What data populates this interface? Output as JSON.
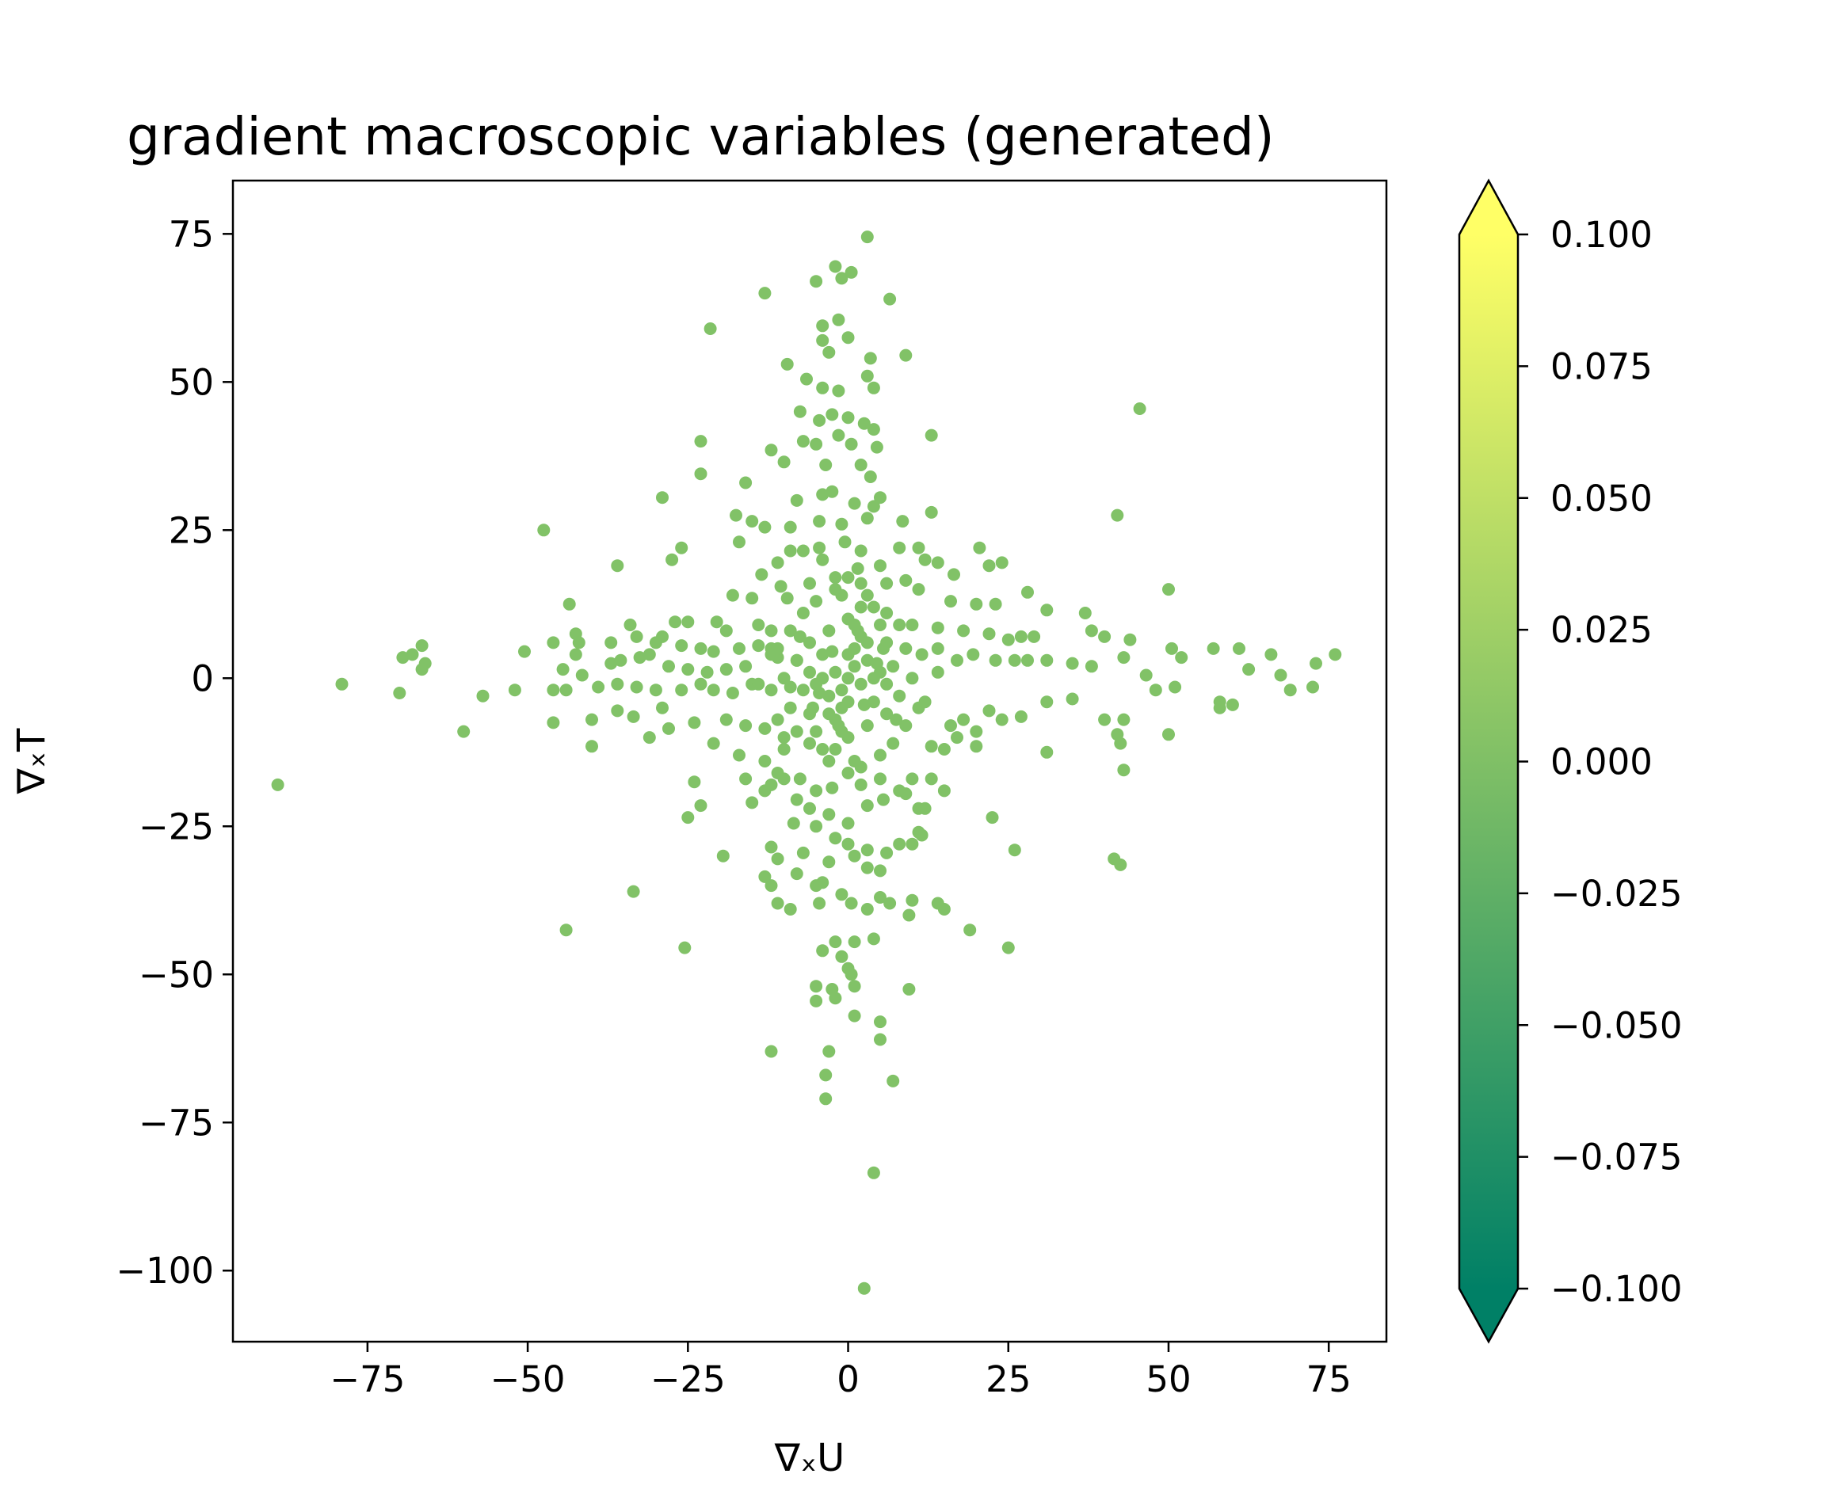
{
  "chart_data": {
    "type": "scatter",
    "title": "gradient macroscopic variables (generated)",
    "xlabel": "∇ₓU",
    "ylabel": "∇ₓT",
    "xlim": [
      -96,
      84
    ],
    "ylim": [
      -112,
      84
    ],
    "xticks": [
      -75,
      -50,
      -25,
      0,
      25,
      50,
      75
    ],
    "xtick_labels": [
      "−75",
      "−50",
      "−25",
      "0",
      "25",
      "50",
      "75"
    ],
    "yticks": [
      75,
      50,
      25,
      0,
      -25,
      -50,
      -75,
      -100
    ],
    "ytick_labels": [
      "75",
      "50",
      "25",
      "0",
      "−25",
      "−50",
      "−75",
      "−100"
    ],
    "grid": false,
    "marker_color": "#81c267",
    "colorbar": {
      "colormap": "summer",
      "range": [
        -0.1,
        0.1
      ],
      "extend": "both",
      "ticks": [
        0.1,
        0.075,
        0.05,
        0.025,
        0.0,
        -0.025,
        -0.05,
        -0.075,
        -0.1
      ],
      "tick_labels": [
        "0.100",
        "0.075",
        "0.050",
        "0.025",
        "0.000",
        "−0.025",
        "−0.050",
        "−0.075",
        "−0.100"
      ],
      "color_low": "#008066",
      "color_high": "#ffff66"
    },
    "points": [
      [
        3,
        74.5
      ],
      [
        -2,
        69.5
      ],
      [
        0.5,
        68.5
      ],
      [
        -1,
        67.5
      ],
      [
        -5,
        67
      ],
      [
        -13,
        65
      ],
      [
        6.5,
        64
      ],
      [
        -21.5,
        59
      ],
      [
        -4,
        59.5
      ],
      [
        -1.5,
        60.5
      ],
      [
        0,
        57.5
      ],
      [
        -4,
        57
      ],
      [
        -3,
        55
      ],
      [
        3.5,
        54
      ],
      [
        9,
        54.5
      ],
      [
        -9.5,
        53
      ],
      [
        -6.5,
        50.5
      ],
      [
        3,
        51
      ],
      [
        4,
        49
      ],
      [
        -4,
        49
      ],
      [
        -1.5,
        48.5
      ],
      [
        45.5,
        45.5
      ],
      [
        -7.5,
        45
      ],
      [
        -2.5,
        44.5
      ],
      [
        -4.5,
        43.5
      ],
      [
        0,
        44
      ],
      [
        2.5,
        43
      ],
      [
        4,
        42
      ],
      [
        -12,
        38.5
      ],
      [
        -23,
        40
      ],
      [
        -5,
        39.5
      ],
      [
        4.5,
        39
      ],
      [
        13,
        41
      ],
      [
        -7,
        40
      ],
      [
        -1.5,
        41
      ],
      [
        0.5,
        39.5
      ],
      [
        2,
        36
      ],
      [
        -3.5,
        36
      ],
      [
        3.5,
        34
      ],
      [
        -10,
        36.5
      ],
      [
        -23,
        34.5
      ],
      [
        -29,
        30.5
      ],
      [
        -16,
        33
      ],
      [
        -4,
        31
      ],
      [
        -8,
        30
      ],
      [
        -2.5,
        31.5
      ],
      [
        5,
        30.5
      ],
      [
        1,
        29.5
      ],
      [
        4,
        29
      ],
      [
        -17.5,
        27.5
      ],
      [
        -15,
        26.5
      ],
      [
        -13,
        25.5
      ],
      [
        -9,
        25.5
      ],
      [
        -4.5,
        26.5
      ],
      [
        -1,
        26
      ],
      [
        3,
        27
      ],
      [
        8.5,
        26.5
      ],
      [
        -47.5,
        25
      ],
      [
        42,
        27.5
      ],
      [
        13,
        28
      ],
      [
        -0.5,
        23
      ],
      [
        -17,
        23
      ],
      [
        -9,
        21.5
      ],
      [
        -7,
        21.5
      ],
      [
        -4.5,
        22
      ],
      [
        2,
        21.5
      ],
      [
        8,
        22
      ],
      [
        11,
        22
      ],
      [
        -26,
        22
      ],
      [
        -27.5,
        20
      ],
      [
        -36,
        19
      ],
      [
        -11,
        19.5
      ],
      [
        -4,
        20
      ],
      [
        1.5,
        18.5
      ],
      [
        5,
        19
      ],
      [
        12,
        20
      ],
      [
        14,
        19.5
      ],
      [
        16.5,
        17.5
      ],
      [
        20.5,
        22
      ],
      [
        22,
        19
      ],
      [
        24,
        19.5
      ],
      [
        -13.5,
        17.5
      ],
      [
        -10.5,
        15.5
      ],
      [
        -6,
        16
      ],
      [
        -2,
        17
      ],
      [
        2,
        16
      ],
      [
        6,
        16
      ],
      [
        9,
        16.5
      ],
      [
        11,
        15
      ],
      [
        -15,
        13.5
      ],
      [
        -9.5,
        13.5
      ],
      [
        -18,
        14
      ],
      [
        16,
        13
      ],
      [
        20,
        12.5
      ],
      [
        23,
        12.5
      ],
      [
        28,
        14.5
      ],
      [
        31,
        11.5
      ],
      [
        37,
        11
      ],
      [
        43,
        3.5
      ],
      [
        -43.5,
        12.5
      ],
      [
        -46,
        6
      ],
      [
        -42.5,
        7.5
      ],
      [
        -42,
        6
      ],
      [
        -34,
        9
      ],
      [
        -27,
        9.5
      ],
      [
        -25,
        9.5
      ],
      [
        -20.5,
        9.5
      ],
      [
        -19,
        8
      ],
      [
        -14,
        9
      ],
      [
        -12,
        8
      ],
      [
        10,
        9
      ],
      [
        14,
        8.5
      ],
      [
        18,
        8
      ],
      [
        22,
        7.5
      ],
      [
        25,
        6.5
      ],
      [
        27,
        7
      ],
      [
        29,
        7
      ],
      [
        38,
        8
      ],
      [
        40,
        7
      ],
      [
        44,
        6.5
      ],
      [
        -33,
        7
      ],
      [
        -29,
        7
      ],
      [
        -37,
        6
      ],
      [
        -30,
        6
      ],
      [
        -26,
        5.5
      ],
      [
        -23,
        5
      ],
      [
        -21,
        4.5
      ],
      [
        -17,
        5
      ],
      [
        -14,
        5.5
      ],
      [
        -12,
        5
      ],
      [
        -11,
        3.5
      ],
      [
        -8,
        3
      ],
      [
        11.5,
        4
      ],
      [
        14,
        5
      ],
      [
        17,
        3
      ],
      [
        19.5,
        4
      ],
      [
        23,
        3
      ],
      [
        26,
        3
      ],
      [
        28,
        3
      ],
      [
        31,
        3
      ],
      [
        35,
        2.5
      ],
      [
        38,
        2
      ],
      [
        -66.5,
        5.5
      ],
      [
        -68,
        4
      ],
      [
        -69.5,
        3.5
      ],
      [
        -66,
        2.5
      ],
      [
        -66.5,
        1.5
      ],
      [
        -50.5,
        4.5
      ],
      [
        -42.5,
        4
      ],
      [
        -44.5,
        1.5
      ],
      [
        -41.5,
        0.5
      ],
      [
        -37,
        2.5
      ],
      [
        -35.5,
        3
      ],
      [
        -32.5,
        3.5
      ],
      [
        -31,
        4
      ],
      [
        -28,
        2
      ],
      [
        -25,
        1.5
      ],
      [
        -22,
        1
      ],
      [
        -19,
        1.5
      ],
      [
        -16,
        2
      ],
      [
        50,
        15
      ],
      [
        50.5,
        5
      ],
      [
        52,
        3.5
      ],
      [
        57,
        5
      ],
      [
        61,
        5
      ],
      [
        66,
        4
      ],
      [
        62.5,
        1.5
      ],
      [
        67.5,
        0.5
      ],
      [
        69,
        -2
      ],
      [
        73,
        2.5
      ],
      [
        76,
        4
      ],
      [
        72.5,
        -1.5
      ],
      [
        46.5,
        0.5
      ],
      [
        51,
        -1.5
      ],
      [
        48,
        -2
      ],
      [
        58,
        -4
      ],
      [
        60,
        -4.5
      ],
      [
        58,
        -5
      ],
      [
        -79,
        -1
      ],
      [
        -70,
        -2.5
      ],
      [
        -57,
        -3
      ],
      [
        -52,
        -2
      ],
      [
        -46,
        -2
      ],
      [
        -44,
        -2
      ],
      [
        -39,
        -1.5
      ],
      [
        -36,
        -1
      ],
      [
        -33,
        -1.5
      ],
      [
        -30,
        -2
      ],
      [
        -26,
        -2
      ],
      [
        -23,
        -1
      ],
      [
        -21,
        -2
      ],
      [
        -18,
        -2.5
      ],
      [
        -15,
        -1
      ],
      [
        -12,
        -2
      ],
      [
        -9,
        -1.5
      ],
      [
        -60,
        -9
      ],
      [
        -46,
        -7.5
      ],
      [
        -40,
        -7
      ],
      [
        -36,
        -5.5
      ],
      [
        -33.5,
        -6.5
      ],
      [
        -29,
        -5
      ],
      [
        -24,
        -7.5
      ],
      [
        -19,
        -7
      ],
      [
        -16,
        -8
      ],
      [
        -13,
        -8.5
      ],
      [
        -11,
        -7
      ],
      [
        -10,
        -10
      ],
      [
        16,
        -8
      ],
      [
        18,
        -7
      ],
      [
        20,
        -9
      ],
      [
        22,
        -5.5
      ],
      [
        24,
        -7
      ],
      [
        27,
        -6.5
      ],
      [
        31,
        -4
      ],
      [
        35,
        -3.5
      ],
      [
        40,
        -7
      ],
      [
        42,
        -9.5
      ],
      [
        43,
        -7
      ],
      [
        50,
        -9.5
      ],
      [
        -40,
        -11.5
      ],
      [
        -31,
        -10
      ],
      [
        -28,
        -8.5
      ],
      [
        -21,
        -11
      ],
      [
        -17,
        -13
      ],
      [
        -13,
        -14
      ],
      [
        -10,
        -12
      ],
      [
        13,
        -11.5
      ],
      [
        15,
        -12
      ],
      [
        17,
        -10
      ],
      [
        20,
        -11.5
      ],
      [
        31,
        -12.5
      ],
      [
        42.5,
        -11
      ],
      [
        -10,
        -17
      ],
      [
        -89,
        -18
      ],
      [
        -24,
        -17.5
      ],
      [
        -16,
        -17
      ],
      [
        -13,
        -19
      ],
      [
        -11,
        -16
      ],
      [
        -7.5,
        -17
      ],
      [
        -5,
        -19
      ],
      [
        -2.5,
        -18.5
      ],
      [
        2,
        -18
      ],
      [
        5,
        -17
      ],
      [
        8,
        -19
      ],
      [
        10,
        -17
      ],
      [
        13,
        -17
      ],
      [
        15,
        -19
      ],
      [
        43,
        -15.5
      ],
      [
        -25,
        -23.5
      ],
      [
        -23,
        -21.5
      ],
      [
        -15,
        -21
      ],
      [
        -12,
        -18
      ],
      [
        -8,
        -20.5
      ],
      [
        -6,
        -22
      ],
      [
        -3,
        -23
      ],
      [
        0,
        -24.5
      ],
      [
        3,
        -21.5
      ],
      [
        5.5,
        -20.5
      ],
      [
        9,
        -19.5
      ],
      [
        11,
        -22
      ],
      [
        12,
        -22
      ],
      [
        22.5,
        -23.5
      ],
      [
        -8.5,
        -24.5
      ],
      [
        -5,
        -25
      ],
      [
        -2,
        -27
      ],
      [
        0,
        -28
      ],
      [
        3,
        -29
      ],
      [
        6,
        -29.5
      ],
      [
        8,
        -28
      ],
      [
        11,
        -26
      ],
      [
        -19.5,
        -30
      ],
      [
        -12,
        -28.5
      ],
      [
        -11,
        -30.5
      ],
      [
        -7,
        -29.5
      ],
      [
        -3,
        -31
      ],
      [
        1,
        -30
      ],
      [
        3,
        -32
      ],
      [
        5,
        -32.5
      ],
      [
        10,
        -28
      ],
      [
        11.5,
        -26.5
      ],
      [
        26,
        -29
      ],
      [
        41.5,
        -30.5
      ],
      [
        42.5,
        -31.5
      ],
      [
        -13,
        -33.5
      ],
      [
        -12,
        -35
      ],
      [
        -8,
        -33
      ],
      [
        -4,
        -34.5
      ],
      [
        -5,
        -35
      ],
      [
        -33.5,
        -36
      ],
      [
        -11,
        -38
      ],
      [
        -9,
        -39
      ],
      [
        -4.5,
        -38
      ],
      [
        -1,
        -36.5
      ],
      [
        0.5,
        -38
      ],
      [
        3,
        -39
      ],
      [
        5,
        -37
      ],
      [
        10,
        -37.5
      ],
      [
        14,
        -38
      ],
      [
        15,
        -39
      ],
      [
        6.5,
        -38
      ],
      [
        -44,
        -42.5
      ],
      [
        -25.5,
        -45.5
      ],
      [
        -4,
        -46
      ],
      [
        -2,
        -44.5
      ],
      [
        1,
        -44.5
      ],
      [
        4,
        -44
      ],
      [
        -1,
        -47
      ],
      [
        0,
        -49
      ],
      [
        19,
        -42.5
      ],
      [
        25,
        -45.5
      ],
      [
        9.5,
        -40
      ],
      [
        -5,
        -52
      ],
      [
        -2.5,
        -52.5
      ],
      [
        0.5,
        -50
      ],
      [
        -5,
        -54.5
      ],
      [
        -2,
        -54
      ],
      [
        1,
        -52
      ],
      [
        1,
        -57
      ],
      [
        5,
        -58
      ],
      [
        9.5,
        -52.5
      ],
      [
        -12,
        -63
      ],
      [
        -3,
        -63
      ],
      [
        5,
        -61
      ],
      [
        -3.5,
        -67
      ],
      [
        7,
        -68
      ],
      [
        -3.5,
        -71
      ],
      [
        4,
        -83.5
      ],
      [
        2.5,
        -103
      ],
      [
        0,
        0
      ],
      [
        1,
        2
      ],
      [
        -1,
        -2
      ],
      [
        2,
        -1
      ],
      [
        -2,
        1
      ],
      [
        3,
        3
      ],
      [
        -3,
        -3
      ],
      [
        4,
        -4
      ],
      [
        -4,
        4
      ],
      [
        5,
        1
      ],
      [
        -5,
        -1
      ],
      [
        1,
        5
      ],
      [
        -1,
        -5
      ],
      [
        6,
        6
      ],
      [
        -6,
        -6
      ],
      [
        6,
        -6
      ],
      [
        -6,
        6
      ],
      [
        7,
        2
      ],
      [
        -7,
        -2
      ],
      [
        2,
        7
      ],
      [
        -2,
        -7
      ],
      [
        8,
        -3
      ],
      [
        -8,
        3
      ],
      [
        3,
        -8
      ],
      [
        -3,
        8
      ],
      [
        9,
        5
      ],
      [
        -9,
        -5
      ],
      [
        5,
        9
      ],
      [
        -5,
        -9
      ],
      [
        10,
        0
      ],
      [
        -10,
        0
      ],
      [
        0,
        10
      ],
      [
        0,
        -10
      ],
      [
        4,
        12
      ],
      [
        -4,
        -12
      ],
      [
        12,
        -4
      ],
      [
        -12,
        4
      ],
      [
        1,
        -14
      ],
      [
        -1,
        14
      ],
      [
        14,
        1
      ],
      [
        -14,
        -1
      ],
      [
        2,
        12
      ],
      [
        -2,
        -12
      ],
      [
        6,
        11
      ],
      [
        -6,
        -11
      ],
      [
        8,
        9
      ],
      [
        -8,
        -9
      ],
      [
        9,
        -8
      ],
      [
        -9,
        8
      ],
      [
        11,
        -5
      ],
      [
        -11,
        5
      ],
      [
        0,
        17
      ],
      [
        0,
        -16
      ],
      [
        2,
        -15
      ],
      [
        -2,
        15
      ],
      [
        3,
        14
      ],
      [
        -3,
        -14
      ],
      [
        5,
        -13
      ],
      [
        -5,
        13
      ],
      [
        7,
        -11
      ],
      [
        -7,
        11
      ],
      [
        1.5,
        8
      ],
      [
        -1.5,
        -8
      ],
      [
        3,
        6
      ],
      [
        -3,
        -6
      ],
      [
        4,
        0
      ],
      [
        -4,
        0
      ],
      [
        0,
        4
      ],
      [
        0,
        -4
      ],
      [
        6,
        -1
      ],
      [
        -6,
        1
      ],
      [
        2.5,
        -4.5
      ],
      [
        -2.5,
        4.5
      ],
      [
        4.5,
        2.5
      ],
      [
        -4.5,
        -2.5
      ],
      [
        1,
        9
      ],
      [
        -1,
        -9
      ],
      [
        7.5,
        -7
      ],
      [
        -7.5,
        7
      ],
      [
        5.5,
        5
      ],
      [
        -5.5,
        -5
      ]
    ]
  }
}
